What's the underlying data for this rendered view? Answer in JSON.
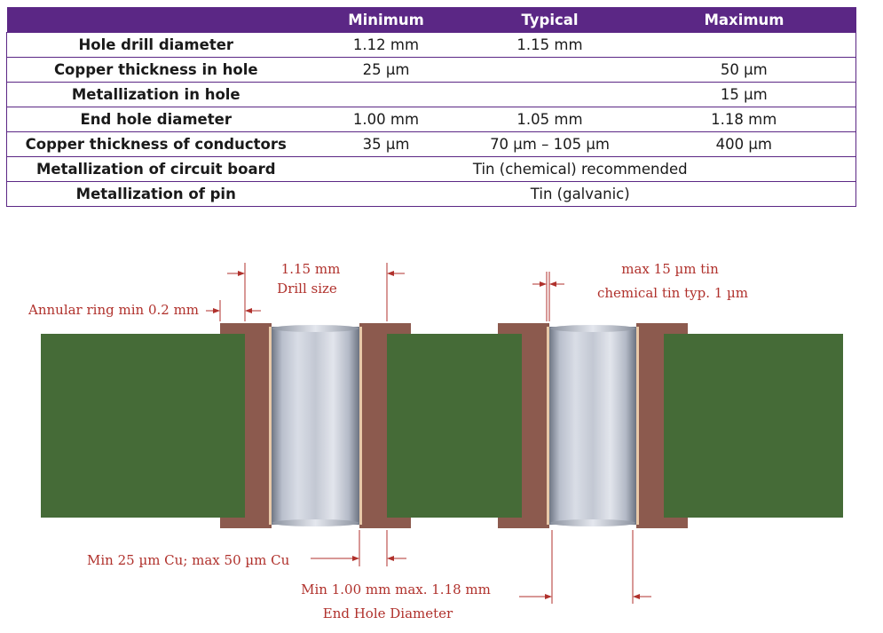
{
  "table": {
    "headers": [
      "",
      "Minimum",
      "Typical",
      "Maximum"
    ],
    "rows": [
      {
        "label": "Hole drill diameter",
        "min": "1.12 mm",
        "typ": "1.15 mm",
        "max": ""
      },
      {
        "label": "Copper thickness in hole",
        "min": "25 µm",
        "typ": "",
        "max": "50 µm"
      },
      {
        "label": "Metallization in hole",
        "min": "",
        "typ": "",
        "max": "15 µm"
      },
      {
        "label": "End hole diameter",
        "min": "1.00 mm",
        "typ": "1.05 mm",
        "max": "1.18 mm"
      },
      {
        "label": "Copper thickness of conductors",
        "min": "35 µm",
        "typ": "70 µm – 105 µm",
        "max": "400 µm"
      },
      {
        "label": "Metallization of circuit board",
        "merged": "Tin (chemical) recommended"
      },
      {
        "label": "Metallization of pin",
        "merged": "Tin (galvanic)"
      }
    ]
  },
  "diagram": {
    "drill_size_value": "1.15 mm",
    "drill_size_label": "Drill size",
    "annular_ring": "Annular ring min 0.2 mm",
    "tin_max": "max 15 µm tin",
    "tin_typ": "chemical tin typ. 1 µm",
    "copper_plating": "Min 25 µm Cu; max 50 µm Cu",
    "end_hole_range": "Min 1.00 mm max. 1.18 mm",
    "end_hole_label": "End Hole Diameter"
  },
  "colors": {
    "header_bg": "#5b2785",
    "board_green": "#456b37",
    "copper_brown": "#8c5a4e",
    "annotation_red": "#b0312c"
  }
}
